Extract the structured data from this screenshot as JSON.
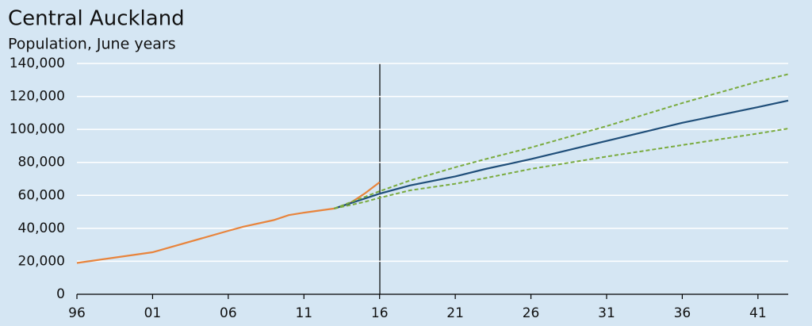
{
  "chart_data": {
    "type": "line",
    "title": "Central Auckland",
    "subtitle": "Population, June years",
    "x": [
      1996,
      2001,
      2006,
      2007,
      2009,
      2010,
      2011,
      2013,
      2014,
      2015,
      2016,
      2018,
      2021,
      2023,
      2026,
      2031,
      2036,
      2041,
      2043
    ],
    "series": [
      {
        "color": "#e8843c",
        "dashed": false,
        "values": [
          19000,
          25500,
          38500,
          41000,
          45000,
          48000,
          49500,
          52000,
          55000,
          61000,
          68000,
          null,
          null,
          null,
          null,
          null,
          null,
          null,
          null
        ]
      },
      {
        "color": "#1f4e79",
        "dashed": false,
        "values": [
          null,
          null,
          null,
          null,
          null,
          null,
          null,
          52000,
          55000,
          58000,
          61000,
          66000,
          71500,
          76000,
          82000,
          93000,
          104000,
          113500,
          117500
        ]
      },
      {
        "color": "#7aab3f",
        "dashed": true,
        "values": [
          null,
          null,
          null,
          null,
          null,
          null,
          null,
          52000,
          55500,
          59000,
          62500,
          69000,
          77000,
          82000,
          89000,
          102000,
          116000,
          129000,
          133500
        ]
      },
      {
        "color": "#7aab3f",
        "dashed": true,
        "values": [
          null,
          null,
          null,
          null,
          null,
          null,
          null,
          52000,
          54000,
          56000,
          58500,
          63000,
          67000,
          70500,
          76000,
          83500,
          90500,
          97500,
          100500
        ]
      }
    ],
    "xlim": [
      1996,
      2043
    ],
    "xticks": [
      {
        "value": 1996,
        "label": "96"
      },
      {
        "value": 2001,
        "label": "01"
      },
      {
        "value": 2006,
        "label": "06"
      },
      {
        "value": 2011,
        "label": "11"
      },
      {
        "value": 2016,
        "label": "16"
      },
      {
        "value": 2021,
        "label": "21"
      },
      {
        "value": 2026,
        "label": "26"
      },
      {
        "value": 2031,
        "label": "31"
      },
      {
        "value": 2036,
        "label": "36"
      },
      {
        "value": 2041,
        "label": "41"
      }
    ],
    "ylim": [
      0,
      140000
    ],
    "yticks": [
      0,
      {
        "value": 20000,
        "label": "20,000"
      },
      {
        "value": 40000,
        "label": "40,000"
      },
      {
        "value": 60000,
        "label": "60,000"
      },
      {
        "value": 80000,
        "label": "80,000"
      },
      {
        "value": 100000,
        "label": "100,000"
      },
      {
        "value": 120000,
        "label": "120,000"
      },
      {
        "value": 140000,
        "label": "140,000"
      }
    ],
    "grid": true
  }
}
